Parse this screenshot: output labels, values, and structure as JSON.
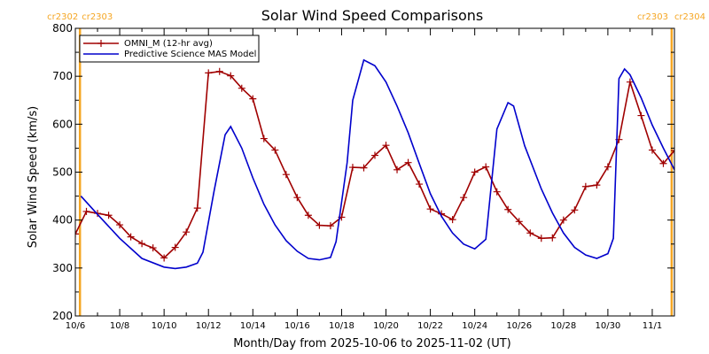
{
  "chart_data": {
    "type": "line",
    "title": "Solar Wind Speed Comparisons",
    "xlabel": "Month/Day from 2025-10-06 to 2025-11-02 (UT)",
    "ylabel": "Solar Wind Speed (km/s)",
    "xlim": [
      "2025-10-06T00:00",
      "2025-11-02T00:00"
    ],
    "ylim": [
      200,
      800
    ],
    "x_ticks": [
      {
        "date": "2025-10-06T00:00",
        "label": "10/6"
      },
      {
        "date": "2025-10-08T00:00",
        "label": "10/8"
      },
      {
        "date": "2025-10-10T00:00",
        "label": "10/10"
      },
      {
        "date": "2025-10-12T00:00",
        "label": "10/12"
      },
      {
        "date": "2025-10-14T00:00",
        "label": "10/14"
      },
      {
        "date": "2025-10-16T00:00",
        "label": "10/16"
      },
      {
        "date": "2025-10-18T00:00",
        "label": "10/18"
      },
      {
        "date": "2025-10-20T00:00",
        "label": "10/20"
      },
      {
        "date": "2025-10-22T00:00",
        "label": "10/22"
      },
      {
        "date": "2025-10-24T00:00",
        "label": "10/24"
      },
      {
        "date": "2025-10-26T00:00",
        "label": "10/26"
      },
      {
        "date": "2025-10-28T00:00",
        "label": "10/28"
      },
      {
        "date": "2025-10-30T00:00",
        "label": "10/30"
      },
      {
        "date": "2025-11-01T00:00",
        "label": "11/1"
      }
    ],
    "y_ticks": [
      200,
      300,
      400,
      500,
      600,
      700,
      800
    ],
    "carrington_rotations": [
      {
        "date": "2025-10-06T05:00",
        "left_label": "cr2302",
        "right_label": "cr2303",
        "color": "#f5a623"
      },
      {
        "date": "2025-11-01T21:00",
        "left_label": "cr2303",
        "right_label": "cr2304",
        "color": "#f5a623"
      }
    ],
    "legend": {
      "position": "top-left"
    },
    "series": [
      {
        "name": "OMNI_M (12-hr avg)",
        "color": "#a00000",
        "marker": "plus",
        "points": [
          [
            "2025-10-06T00:00",
            371
          ],
          [
            "2025-10-06T12:00",
            418
          ],
          [
            "2025-10-07T00:00",
            414
          ],
          [
            "2025-10-07T12:00",
            410
          ],
          [
            "2025-10-08T00:00",
            390
          ],
          [
            "2025-10-08T12:00",
            365
          ],
          [
            "2025-10-09T00:00",
            351
          ],
          [
            "2025-10-09T12:00",
            342
          ],
          [
            "2025-10-10T00:00",
            321
          ],
          [
            "2025-10-10T12:00",
            343
          ],
          [
            "2025-10-11T00:00",
            375
          ],
          [
            "2025-10-11T12:00",
            425
          ],
          [
            "2025-10-12T00:00",
            707
          ],
          [
            "2025-10-12T12:00",
            710
          ],
          [
            "2025-10-13T00:00",
            701
          ],
          [
            "2025-10-13T12:00",
            675
          ],
          [
            "2025-10-14T00:00",
            653
          ],
          [
            "2025-10-14T12:00",
            570
          ],
          [
            "2025-10-15T00:00",
            546
          ],
          [
            "2025-10-15T12:00",
            495
          ],
          [
            "2025-10-16T00:00",
            447
          ],
          [
            "2025-10-16T12:00",
            410
          ],
          [
            "2025-10-17T00:00",
            389
          ],
          [
            "2025-10-17T12:00",
            388
          ],
          [
            "2025-10-18T00:00",
            406
          ],
          [
            "2025-10-18T12:00",
            510
          ],
          [
            "2025-10-19T00:00",
            509
          ],
          [
            "2025-10-19T12:00",
            535
          ],
          [
            "2025-10-20T00:00",
            556
          ],
          [
            "2025-10-20T12:00",
            505
          ],
          [
            "2025-10-21T00:00",
            520
          ],
          [
            "2025-10-21T12:00",
            475
          ],
          [
            "2025-10-22T00:00",
            423
          ],
          [
            "2025-10-22T12:00",
            413
          ],
          [
            "2025-10-23T00:00",
            401
          ],
          [
            "2025-10-23T12:00",
            447
          ],
          [
            "2025-10-24T00:00",
            500
          ],
          [
            "2025-10-24T12:00",
            511
          ],
          [
            "2025-10-25T00:00",
            459
          ],
          [
            "2025-10-25T12:00",
            422
          ],
          [
            "2025-10-26T00:00",
            397
          ],
          [
            "2025-10-26T12:00",
            373
          ],
          [
            "2025-10-27T00:00",
            362
          ],
          [
            "2025-10-27T12:00",
            363
          ],
          [
            "2025-10-28T00:00",
            400
          ],
          [
            "2025-10-28T12:00",
            421
          ],
          [
            "2025-10-29T00:00",
            470
          ],
          [
            "2025-10-29T12:00",
            473
          ],
          [
            "2025-10-30T00:00",
            511
          ],
          [
            "2025-10-30T12:00",
            568
          ],
          [
            "2025-10-31T00:00",
            688
          ],
          [
            "2025-10-31T12:00",
            618
          ],
          [
            "2025-11-01T00:00",
            546
          ],
          [
            "2025-11-01T12:00",
            518
          ],
          [
            "2025-11-02T00:00",
            545
          ],
          [
            "2025-11-02T12:00",
            538
          ]
        ]
      },
      {
        "name": "Predictive Science MAS Model",
        "color": "#0000cc",
        "marker": "none",
        "points": [
          [
            "2025-10-06T06:00",
            450
          ],
          [
            "2025-10-07T00:00",
            412
          ],
          [
            "2025-10-08T00:00",
            362
          ],
          [
            "2025-10-09T00:00",
            320
          ],
          [
            "2025-10-10T00:00",
            302
          ],
          [
            "2025-10-10T12:00",
            299
          ],
          [
            "2025-10-11T00:00",
            302
          ],
          [
            "2025-10-11T12:00",
            310
          ],
          [
            "2025-10-11T18:00",
            333
          ],
          [
            "2025-10-12T06:00",
            460
          ],
          [
            "2025-10-12T18:00",
            578
          ],
          [
            "2025-10-13T00:00",
            595
          ],
          [
            "2025-10-13T12:00",
            550
          ],
          [
            "2025-10-14T00:00",
            488
          ],
          [
            "2025-10-14T12:00",
            433
          ],
          [
            "2025-10-15T00:00",
            390
          ],
          [
            "2025-10-15T12:00",
            357
          ],
          [
            "2025-10-16T00:00",
            335
          ],
          [
            "2025-10-16T12:00",
            320
          ],
          [
            "2025-10-17T00:00",
            317
          ],
          [
            "2025-10-17T12:00",
            322
          ],
          [
            "2025-10-17T18:00",
            355
          ],
          [
            "2025-10-18T06:00",
            520
          ],
          [
            "2025-10-18T12:00",
            650
          ],
          [
            "2025-10-19T00:00",
            734
          ],
          [
            "2025-10-19T12:00",
            722
          ],
          [
            "2025-10-20T00:00",
            688
          ],
          [
            "2025-10-20T12:00",
            638
          ],
          [
            "2025-10-21T00:00",
            582
          ],
          [
            "2025-10-21T12:00",
            518
          ],
          [
            "2025-10-22T00:00",
            455
          ],
          [
            "2025-10-22T12:00",
            408
          ],
          [
            "2025-10-23T00:00",
            373
          ],
          [
            "2025-10-23T12:00",
            350
          ],
          [
            "2025-10-24T00:00",
            340
          ],
          [
            "2025-10-24T12:00",
            360
          ],
          [
            "2025-10-25T00:00",
            590
          ],
          [
            "2025-10-25T12:00",
            645
          ],
          [
            "2025-10-25T18:00",
            638
          ],
          [
            "2025-10-26T06:00",
            555
          ],
          [
            "2025-10-27T00:00",
            465
          ],
          [
            "2025-10-27T12:00",
            415
          ],
          [
            "2025-10-28T00:00",
            373
          ],
          [
            "2025-10-28T12:00",
            343
          ],
          [
            "2025-10-29T00:00",
            327
          ],
          [
            "2025-10-29T12:00",
            320
          ],
          [
            "2025-10-30T00:00",
            330
          ],
          [
            "2025-10-30T06:00",
            362
          ],
          [
            "2025-10-30T12:00",
            695
          ],
          [
            "2025-10-30T18:00",
            715
          ],
          [
            "2025-10-31T00:00",
            703
          ],
          [
            "2025-10-31T12:00",
            655
          ],
          [
            "2025-11-01T00:00",
            598
          ],
          [
            "2025-11-01T12:00",
            550
          ],
          [
            "2025-11-02T00:00",
            505
          ],
          [
            "2025-11-02T12:00",
            465
          ]
        ]
      }
    ]
  }
}
